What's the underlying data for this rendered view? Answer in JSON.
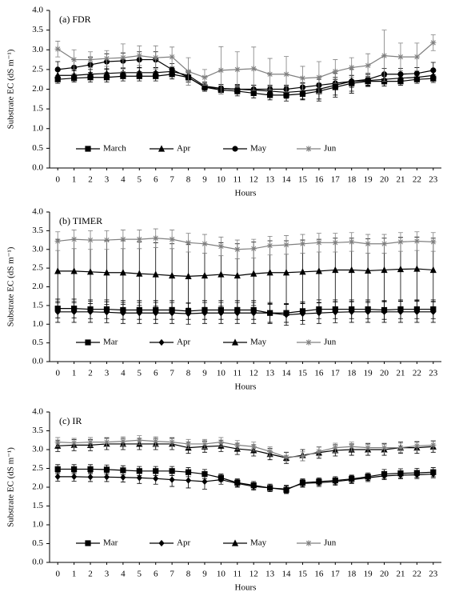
{
  "chart_data": [
    {
      "type": "line",
      "annotation": "(a) FDR",
      "y_label": "Substrate EC (dS m⁻¹)",
      "x_label": "Hours",
      "x": [
        0,
        1,
        2,
        3,
        4,
        5,
        6,
        7,
        8,
        9,
        10,
        11,
        12,
        13,
        14,
        15,
        16,
        17,
        18,
        19,
        20,
        21,
        22,
        23
      ],
      "xlim": [
        -0.5,
        23.5
      ],
      "xticks": [
        0,
        1,
        2,
        3,
        4,
        5,
        6,
        7,
        8,
        9,
        10,
        11,
        12,
        13,
        14,
        15,
        16,
        17,
        18,
        19,
        20,
        21,
        22,
        23
      ],
      "ylim": [
        0,
        4
      ],
      "yticks": [
        {
          "value": 0,
          "label": "0.0"
        },
        {
          "value": 0.5,
          "label": "0.5"
        },
        {
          "value": 1,
          "label": "1.0"
        },
        {
          "value": 1.5,
          "label": "1.5"
        },
        {
          "value": 2,
          "label": "2.0"
        },
        {
          "value": 2.5,
          "label": "2.5"
        },
        {
          "value": 3,
          "label": "3.0"
        },
        {
          "value": 3.5,
          "label": "3.5"
        },
        {
          "value": 4,
          "label": "4.0"
        }
      ],
      "series": [
        {
          "name": "March",
          "color": "#000000",
          "marker": "square",
          "values": [
            2.25,
            2.28,
            2.3,
            2.3,
            2.33,
            2.33,
            2.33,
            2.38,
            2.3,
            2.05,
            1.98,
            1.95,
            1.9,
            1.85,
            1.85,
            1.88,
            1.95,
            2.05,
            2.15,
            2.2,
            2.2,
            2.2,
            2.25,
            2.27
          ],
          "errors": [
            0.1,
            0.1,
            0.12,
            0.12,
            0.12,
            0.12,
            0.12,
            0.12,
            0.12,
            0.1,
            0.1,
            0.12,
            0.12,
            0.12,
            0.15,
            0.15,
            0.2,
            0.2,
            0.2,
            0.12,
            0.12,
            0.1,
            0.1,
            0.1
          ]
        },
        {
          "name": "Apr",
          "color": "#000000",
          "marker": "triangle",
          "values": [
            2.35,
            2.35,
            2.38,
            2.4,
            2.42,
            2.42,
            2.42,
            2.45,
            2.35,
            2.08,
            2.02,
            2.0,
            1.98,
            1.95,
            1.92,
            1.95,
            2.0,
            2.1,
            2.2,
            2.22,
            2.25,
            2.28,
            2.3,
            2.35
          ],
          "errors": [
            0.12,
            0.12,
            0.12,
            0.12,
            0.12,
            0.12,
            0.12,
            0.12,
            0.12,
            0.1,
            0.1,
            0.12,
            0.12,
            0.12,
            0.15,
            0.2,
            0.3,
            0.3,
            0.3,
            0.15,
            0.12,
            0.12,
            0.1,
            0.1
          ]
        },
        {
          "name": "May",
          "color": "#000000",
          "marker": "circle",
          "values": [
            2.5,
            2.55,
            2.62,
            2.7,
            2.72,
            2.75,
            2.75,
            2.5,
            2.3,
            2.05,
            2.02,
            2.0,
            2.0,
            2.0,
            2.0,
            2.05,
            2.1,
            2.15,
            2.2,
            2.25,
            2.38,
            2.38,
            2.4,
            2.48
          ],
          "errors": [
            0.2,
            0.2,
            0.2,
            0.2,
            0.2,
            0.2,
            0.2,
            0.15,
            0.12,
            0.1,
            0.1,
            0.1,
            0.1,
            0.1,
            0.1,
            0.12,
            0.15,
            0.15,
            0.15,
            0.15,
            0.15,
            0.15,
            0.15,
            0.2
          ]
        },
        {
          "name": "Jun",
          "color": "#808080",
          "marker": "star",
          "values": [
            3.02,
            2.75,
            2.75,
            2.78,
            2.8,
            2.85,
            2.8,
            2.82,
            2.45,
            2.3,
            2.48,
            2.5,
            2.52,
            2.38,
            2.38,
            2.28,
            2.3,
            2.45,
            2.55,
            2.6,
            2.85,
            2.82,
            2.82,
            3.18
          ],
          "errors": [
            0.2,
            0.25,
            0.2,
            0.2,
            0.35,
            0.25,
            0.3,
            0.25,
            0.35,
            0.2,
            0.6,
            0.45,
            0.55,
            0.4,
            0.45,
            0.3,
            0.4,
            0.3,
            0.25,
            0.3,
            0.65,
            0.35,
            0.35,
            0.2
          ]
        }
      ]
    },
    {
      "type": "line",
      "annotation": "(b) TIMER",
      "y_label": "Substrate EC (dS m⁻¹)",
      "x_label": "Hours",
      "x": [
        0,
        1,
        2,
        3,
        4,
        5,
        6,
        7,
        8,
        9,
        10,
        11,
        12,
        13,
        14,
        15,
        16,
        17,
        18,
        19,
        20,
        21,
        22,
        23
      ],
      "xlim": [
        -0.5,
        23.5
      ],
      "xticks": [
        0,
        1,
        2,
        3,
        4,
        5,
        6,
        7,
        8,
        9,
        10,
        11,
        12,
        13,
        14,
        15,
        16,
        17,
        18,
        19,
        20,
        21,
        22,
        23
      ],
      "ylim": [
        0,
        4
      ],
      "yticks": [
        {
          "value": 0,
          "label": "0.0"
        },
        {
          "value": 0.5,
          "label": "0.5"
        },
        {
          "value": 1,
          "label": "1.0"
        },
        {
          "value": 1.5,
          "label": "1.5"
        },
        {
          "value": 2,
          "label": "2.0"
        },
        {
          "value": 2.5,
          "label": "2.5"
        },
        {
          "value": 3,
          "label": "3.0"
        },
        {
          "value": 3.5,
          "label": "3.5"
        },
        {
          "value": 4,
          "label": "4.0"
        }
      ],
      "series": [
        {
          "name": "Mar",
          "color": "#000000",
          "marker": "square",
          "values": [
            1.42,
            1.42,
            1.4,
            1.4,
            1.38,
            1.38,
            1.38,
            1.38,
            1.35,
            1.38,
            1.38,
            1.38,
            1.38,
            1.3,
            1.3,
            1.35,
            1.4,
            1.4,
            1.4,
            1.4,
            1.38,
            1.4,
            1.4,
            1.4
          ],
          "errors": [
            0.25,
            0.25,
            0.25,
            0.25,
            0.25,
            0.25,
            0.25,
            0.25,
            0.22,
            0.25,
            0.25,
            0.25,
            0.25,
            0.25,
            0.25,
            0.25,
            0.25,
            0.25,
            0.25,
            0.25,
            0.25,
            0.25,
            0.25,
            0.25
          ]
        },
        {
          "name": "Apr",
          "color": "#000000",
          "marker": "diamond",
          "values": [
            1.33,
            1.33,
            1.33,
            1.32,
            1.3,
            1.3,
            1.3,
            1.3,
            1.28,
            1.3,
            1.3,
            1.3,
            1.3,
            1.3,
            1.25,
            1.28,
            1.3,
            1.32,
            1.33,
            1.33,
            1.33,
            1.33,
            1.33,
            1.33
          ],
          "errors": [
            0.28,
            0.28,
            0.28,
            0.28,
            0.28,
            0.28,
            0.28,
            0.28,
            0.28,
            0.28,
            0.28,
            0.28,
            0.28,
            0.28,
            0.28,
            0.28,
            0.28,
            0.28,
            0.28,
            0.28,
            0.28,
            0.28,
            0.28,
            0.28
          ]
        },
        {
          "name": "May",
          "color": "#000000",
          "marker": "triangle",
          "values": [
            2.42,
            2.42,
            2.4,
            2.38,
            2.38,
            2.35,
            2.33,
            2.3,
            2.28,
            2.3,
            2.33,
            2.3,
            2.35,
            2.38,
            2.38,
            2.4,
            2.42,
            2.45,
            2.45,
            2.43,
            2.45,
            2.47,
            2.48,
            2.45
          ],
          "errors": [
            0.85,
            0.85,
            0.85,
            0.85,
            0.85,
            0.85,
            0.85,
            0.85,
            0.85,
            0.85,
            0.85,
            0.85,
            0.85,
            0.85,
            0.85,
            0.85,
            0.85,
            0.85,
            0.85,
            0.85,
            0.85,
            0.85,
            0.85,
            0.85
          ]
        },
        {
          "name": "Jun",
          "color": "#808080",
          "marker": "star",
          "values": [
            3.22,
            3.27,
            3.25,
            3.25,
            3.27,
            3.27,
            3.3,
            3.27,
            3.18,
            3.15,
            3.08,
            3.0,
            3.02,
            3.1,
            3.12,
            3.15,
            3.18,
            3.18,
            3.2,
            3.15,
            3.15,
            3.2,
            3.22,
            3.2
          ],
          "errors": [
            0.25,
            0.25,
            0.25,
            0.25,
            0.25,
            0.25,
            0.25,
            0.25,
            0.25,
            0.25,
            0.25,
            0.25,
            0.25,
            0.25,
            0.25,
            0.25,
            0.25,
            0.25,
            0.25,
            0.25,
            0.25,
            0.25,
            0.25,
            0.25
          ]
        }
      ]
    },
    {
      "type": "line",
      "annotation": "(c) IR",
      "y_label": "Substrate EC (dS m⁻¹)",
      "x_label": "Hours",
      "x": [
        0,
        1,
        2,
        3,
        4,
        5,
        6,
        7,
        8,
        9,
        10,
        11,
        12,
        13,
        14,
        15,
        16,
        17,
        18,
        19,
        20,
        21,
        22,
        23
      ],
      "xlim": [
        -0.5,
        23.5
      ],
      "xticks": [
        0,
        1,
        2,
        3,
        4,
        5,
        6,
        7,
        8,
        9,
        10,
        11,
        12,
        13,
        14,
        15,
        16,
        17,
        18,
        19,
        20,
        21,
        22,
        23
      ],
      "ylim": [
        0,
        4
      ],
      "yticks": [
        {
          "value": 0,
          "label": "0.0"
        },
        {
          "value": 0.5,
          "label": "0.5"
        },
        {
          "value": 1,
          "label": "1.0"
        },
        {
          "value": 1.5,
          "label": "1.5"
        },
        {
          "value": 2,
          "label": "2.0"
        },
        {
          "value": 2.5,
          "label": "2.5"
        },
        {
          "value": 3,
          "label": "3.0"
        },
        {
          "value": 3.5,
          "label": "3.5"
        },
        {
          "value": 4,
          "label": "4.0"
        }
      ],
      "series": [
        {
          "name": "Mar",
          "color": "#000000",
          "marker": "square",
          "values": [
            2.48,
            2.48,
            2.48,
            2.47,
            2.45,
            2.43,
            2.43,
            2.43,
            2.4,
            2.35,
            2.25,
            2.12,
            2.05,
            1.98,
            1.93,
            2.12,
            2.15,
            2.18,
            2.22,
            2.28,
            2.35,
            2.37,
            2.38,
            2.4
          ],
          "errors": [
            0.12,
            0.12,
            0.12,
            0.12,
            0.12,
            0.12,
            0.12,
            0.12,
            0.12,
            0.12,
            0.1,
            0.1,
            0.1,
            0.1,
            0.1,
            0.1,
            0.1,
            0.1,
            0.1,
            0.1,
            0.12,
            0.12,
            0.12,
            0.12
          ]
        },
        {
          "name": "Apr",
          "color": "#000000",
          "marker": "diamond",
          "values": [
            2.28,
            2.28,
            2.27,
            2.27,
            2.26,
            2.25,
            2.23,
            2.2,
            2.18,
            2.15,
            2.2,
            2.1,
            2.02,
            1.98,
            1.95,
            2.1,
            2.12,
            2.15,
            2.2,
            2.25,
            2.3,
            2.32,
            2.33,
            2.35
          ],
          "errors": [
            0.12,
            0.12,
            0.12,
            0.12,
            0.12,
            0.15,
            0.15,
            0.18,
            0.2,
            0.2,
            0.12,
            0.1,
            0.1,
            0.1,
            0.1,
            0.1,
            0.1,
            0.1,
            0.1,
            0.1,
            0.1,
            0.1,
            0.1,
            0.1
          ]
        },
        {
          "name": "May",
          "color": "#000000",
          "marker": "triangle",
          "values": [
            3.1,
            3.12,
            3.12,
            3.15,
            3.15,
            3.15,
            3.15,
            3.15,
            3.05,
            3.08,
            3.1,
            3.02,
            2.98,
            2.88,
            2.78,
            2.85,
            2.92,
            2.98,
            3.0,
            3.0,
            3.0,
            3.05,
            3.05,
            3.08
          ],
          "errors": [
            0.15,
            0.15,
            0.15,
            0.15,
            0.15,
            0.15,
            0.15,
            0.15,
            0.15,
            0.15,
            0.15,
            0.15,
            0.15,
            0.15,
            0.15,
            0.15,
            0.15,
            0.15,
            0.15,
            0.15,
            0.15,
            0.15,
            0.15,
            0.15
          ]
        },
        {
          "name": "Jun",
          "color": "#808080",
          "marker": "star",
          "values": [
            3.2,
            3.18,
            3.2,
            3.2,
            3.22,
            3.25,
            3.22,
            3.2,
            3.15,
            3.15,
            3.2,
            3.12,
            3.08,
            2.95,
            2.8,
            2.82,
            2.95,
            3.05,
            3.08,
            3.05,
            3.05,
            3.05,
            3.1,
            3.12
          ],
          "errors": [
            0.12,
            0.12,
            0.12,
            0.12,
            0.12,
            0.12,
            0.12,
            0.12,
            0.12,
            0.12,
            0.12,
            0.12,
            0.12,
            0.12,
            0.12,
            0.12,
            0.12,
            0.12,
            0.12,
            0.12,
            0.12,
            0.12,
            0.12,
            0.12
          ]
        }
      ]
    }
  ]
}
